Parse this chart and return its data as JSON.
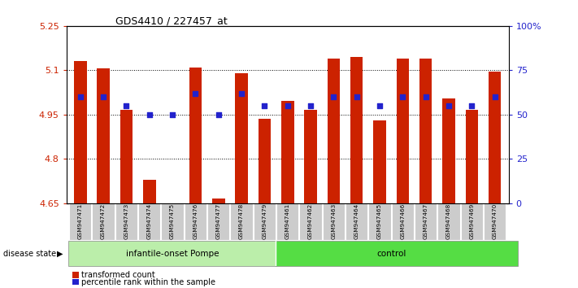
{
  "title": "GDS4410 / 227457_at",
  "samples": [
    "GSM947471",
    "GSM947472",
    "GSM947473",
    "GSM947474",
    "GSM947475",
    "GSM947476",
    "GSM947477",
    "GSM947478",
    "GSM947479",
    "GSM947461",
    "GSM947462",
    "GSM947463",
    "GSM947464",
    "GSM947465",
    "GSM947466",
    "GSM947467",
    "GSM947468",
    "GSM947469",
    "GSM947470"
  ],
  "bar_values": [
    5.13,
    5.105,
    4.965,
    4.73,
    4.645,
    5.11,
    4.665,
    5.09,
    4.935,
    4.995,
    4.965,
    5.14,
    5.145,
    4.93,
    5.14,
    5.14,
    5.005,
    4.965,
    5.095
  ],
  "dot_values_pct": [
    60,
    60,
    55,
    50,
    50,
    62,
    50,
    62,
    55,
    55,
    55,
    60,
    60,
    55,
    60,
    60,
    55,
    55,
    60
  ],
  "bar_bottom": 4.65,
  "ylim_min": 4.65,
  "ylim_max": 5.25,
  "yticks": [
    4.65,
    4.8,
    4.95,
    5.1,
    5.25
  ],
  "ytick_labels": [
    "4.65",
    "4.8",
    "4.95",
    "5.1",
    "5.25"
  ],
  "right_yticks_pct": [
    0,
    25,
    50,
    75,
    100
  ],
  "right_ytick_labels": [
    "0",
    "25",
    "50",
    "75",
    "100%"
  ],
  "bar_color": "#cc2200",
  "dot_color": "#2222cc",
  "group1_label": "infantile-onset Pompe",
  "group2_label": "control",
  "group1_count": 9,
  "group2_count": 10,
  "group1_color": "#bbeeaa",
  "group2_color": "#55dd44",
  "disease_state_label": "disease state",
  "legend1": "transformed count",
  "legend2": "percentile rank within the sample",
  "tick_label_area_color": "#cccccc",
  "title_fontsize": 9,
  "axis_label_color_left": "#cc2200",
  "axis_label_color_right": "#2222cc"
}
